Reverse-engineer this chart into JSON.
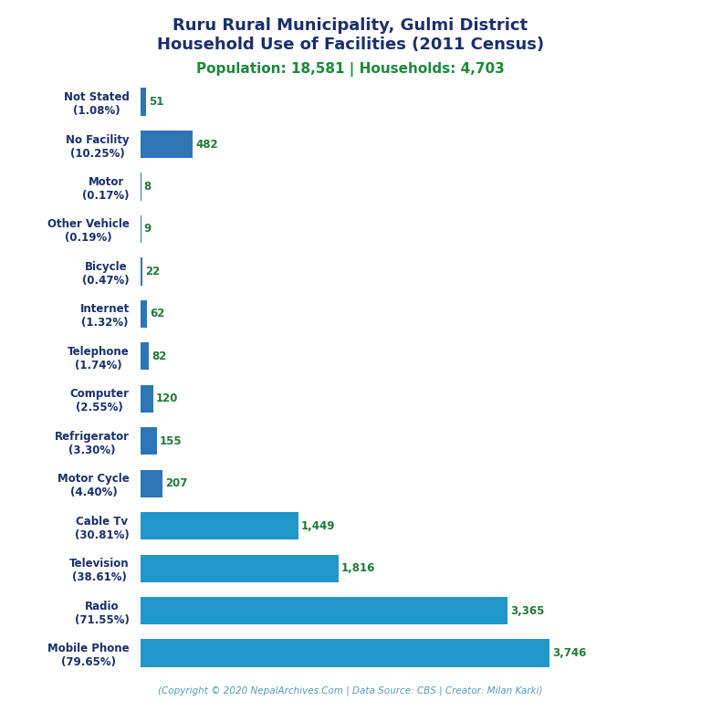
{
  "title_line1": "Ruru Rural Municipality, Gulmi District",
  "title_line2": "Household Use of Facilities (2011 Census)",
  "subtitle": "Population: 18,581 | Households: 4,703",
  "footer": "(Copyright © 2020 NepalArchives.Com | Data Source: CBS | Creator: Milan Karki)",
  "categories": [
    "Not Stated\n(1.08%)",
    "No Facility\n(10.25%)",
    "Motor\n(0.17%)",
    "Other Vehicle\n(0.19%)",
    "Bicycle\n(0.47%)",
    "Internet\n(1.32%)",
    "Telephone\n(1.74%)",
    "Computer\n(2.55%)",
    "Refrigerator\n(3.30%)",
    "Motor Cycle\n(4.40%)",
    "Cable Tv\n(30.81%)",
    "Television\n(38.61%)",
    "Radio\n(71.55%)",
    "Mobile Phone\n(79.65%)"
  ],
  "values": [
    51,
    482,
    8,
    9,
    22,
    62,
    82,
    120,
    155,
    207,
    1449,
    1816,
    3365,
    3746
  ],
  "bar_colors": [
    "#2E75B6",
    "#2E75B6",
    "#2E75B6",
    "#2E75B6",
    "#2E75B6",
    "#2E75B6",
    "#2E75B6",
    "#2E75B6",
    "#2E75B6",
    "#2E75B6",
    "#2196C8",
    "#2196C8",
    "#2196C8",
    "#2196C8"
  ],
  "value_color": "#217a3a",
  "title_color": "#1a2f6e",
  "subtitle_color": "#1a8a3a",
  "label_color": "#1a2f6e",
  "footer_color": "#5599bb",
  "background_color": "#ffffff",
  "xlim": [
    0,
    4300
  ]
}
